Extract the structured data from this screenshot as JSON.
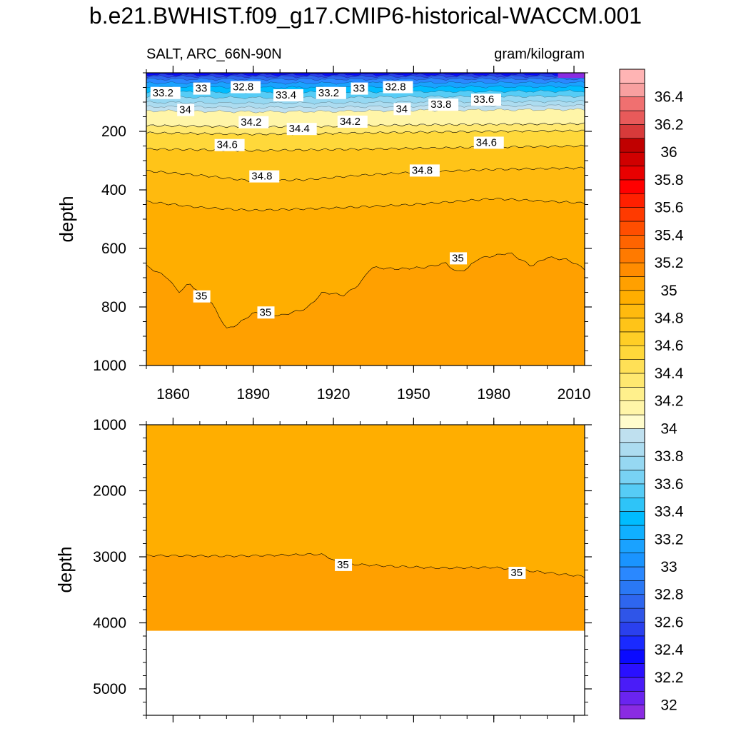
{
  "title": "b.e21.BWHIST.f09_g17.CMIP6-historical-WACCM.001",
  "colors": {
    "levels": [
      32,
      32.1,
      32.2,
      32.3,
      32.4,
      32.5,
      32.6,
      32.7,
      32.8,
      32.9,
      33,
      33.1,
      33.2,
      33.3,
      33.4,
      33.5,
      33.6,
      33.7,
      33.8,
      33.9,
      34,
      34.1,
      34.2,
      34.3,
      34.4,
      34.5,
      34.6,
      34.7,
      34.8,
      34.9,
      35,
      35.1,
      35.2,
      35.3,
      35.4,
      35.5,
      35.6,
      35.7,
      35.8,
      35.9,
      36,
      36.1,
      36.2,
      36.3,
      36.4,
      36.5
    ],
    "fills": [
      "#8a2be2",
      "#6a24f0",
      "#4a1cf8",
      "#2a10ff",
      "#0a0aff",
      "#1a2aff",
      "#2a40ee",
      "#2f55e8",
      "#2e66ef",
      "#2a78f5",
      "#2a88ff",
      "#1a94ff",
      "#1aa2ff",
      "#10b0ff",
      "#00bcff",
      "#2ec4f8",
      "#56ccf6",
      "#78d2f4",
      "#96d8f2",
      "#acdcf0",
      "#bfe0ef",
      "#fffccc",
      "#fff5a8",
      "#fff08c",
      "#ffe870",
      "#ffe056",
      "#ffd83a",
      "#ffce26",
      "#ffc418",
      "#ffba0e",
      "#ffae00",
      "#ffa000",
      "#ff8c00",
      "#ff7a00",
      "#ff6400",
      "#ff4e00",
      "#ff3a00",
      "#ff2000",
      "#ff0000",
      "#e80000",
      "#d00000",
      "#c00000",
      "#d83a3a",
      "#e85a5a",
      "#f07070",
      "#f8a0a0",
      "#ffb4b4"
    ]
  },
  "chart_data": [
    {
      "type": "heatmap",
      "panel": "upper",
      "left_label": "SALT, ARC_66N-90N",
      "right_label": "gram/kilogram",
      "xlabel": "",
      "ylabel": "depth",
      "xlim": [
        1850,
        2014
      ],
      "ylim": [
        1000,
        0
      ],
      "xticks": [
        1860,
        1890,
        1920,
        1950,
        1980,
        2010
      ],
      "yticks": [
        200,
        400,
        600,
        800,
        1000
      ],
      "contours": [
        {
          "level": 34.2,
          "depths": [
            [
              1850,
              180
            ],
            [
              1890,
              185
            ],
            [
              1920,
              183
            ],
            [
              1950,
              178
            ],
            [
              1980,
              176
            ],
            [
              2014,
              174
            ]
          ]
        },
        {
          "level": 34.4,
          "depths": [
            [
              1850,
              205
            ],
            [
              1890,
              210
            ],
            [
              1920,
              207
            ],
            [
              1950,
              203
            ],
            [
              1980,
              200
            ],
            [
              2014,
              198
            ]
          ]
        },
        {
          "level": 34.6,
          "depths": [
            [
              1850,
              260
            ],
            [
              1890,
              266
            ],
            [
              1920,
              262
            ],
            [
              1950,
              258
            ],
            [
              1980,
              254
            ],
            [
              2014,
              250
            ]
          ]
        },
        {
          "level": 34.8,
          "depths": [
            [
              1850,
              335
            ],
            [
              1870,
              350
            ],
            [
              1890,
              370
            ],
            [
              1910,
              365
            ],
            [
              1930,
              350
            ],
            [
              1950,
              340
            ],
            [
              1980,
              330
            ],
            [
              2014,
              325
            ]
          ]
        },
        {
          "level": 34.9,
          "depths": [
            [
              1850,
              440
            ],
            [
              1870,
              460
            ],
            [
              1890,
              470
            ],
            [
              1920,
              462
            ],
            [
              1950,
              450
            ],
            [
              1980,
              430
            ],
            [
              2014,
              445
            ]
          ]
        },
        {
          "level": 35.0,
          "depths": [
            [
              1850,
              660
            ],
            [
              1858,
              700
            ],
            [
              1862,
              750
            ],
            [
              1866,
              720
            ],
            [
              1874,
              780
            ],
            [
              1880,
              875
            ],
            [
              1884,
              860
            ],
            [
              1890,
              820
            ],
            [
              1900,
              830
            ],
            [
              1910,
              805
            ],
            [
              1916,
              750
            ],
            [
              1924,
              760
            ],
            [
              1930,
              720
            ],
            [
              1934,
              665
            ],
            [
              1944,
              670
            ],
            [
              1954,
              665
            ],
            [
              1962,
              650
            ],
            [
              1966,
              680
            ],
            [
              1970,
              670
            ],
            [
              1974,
              635
            ],
            [
              1986,
              615
            ],
            [
              1994,
              660
            ],
            [
              2000,
              630
            ],
            [
              2008,
              640
            ],
            [
              2014,
              670
            ]
          ]
        }
      ],
      "contour_labels": [
        {
          "text": "33.2",
          "x": 1851,
          "y": 75
        },
        {
          "text": "33",
          "x": 1867,
          "y": 60
        },
        {
          "text": "32.8",
          "x": 1881,
          "y": 55
        },
        {
          "text": "33.4",
          "x": 1897,
          "y": 83
        },
        {
          "text": "33.2",
          "x": 1913,
          "y": 75
        },
        {
          "text": "33",
          "x": 1926,
          "y": 60
        },
        {
          "text": "32.8",
          "x": 1938,
          "y": 55
        },
        {
          "text": "34",
          "x": 1861,
          "y": 133
        },
        {
          "text": "34",
          "x": 1942,
          "y": 130
        },
        {
          "text": "33.8",
          "x": 1955,
          "y": 115
        },
        {
          "text": "33.6",
          "x": 1971,
          "y": 98
        },
        {
          "text": "34.2",
          "x": 1884,
          "y": 175
        },
        {
          "text": "34.2",
          "x": 1921,
          "y": 173
        },
        {
          "text": "34.4",
          "x": 1902,
          "y": 198
        },
        {
          "text": "34.6",
          "x": 1875,
          "y": 253
        },
        {
          "text": "34.6",
          "x": 1972,
          "y": 245
        },
        {
          "text": "34.8",
          "x": 1888,
          "y": 360
        },
        {
          "text": "34.8",
          "x": 1948,
          "y": 340
        },
        {
          "text": "35",
          "x": 1867,
          "y": 770
        },
        {
          "text": "35",
          "x": 1891,
          "y": 825
        },
        {
          "text": "35",
          "x": 1963,
          "y": 640
        }
      ]
    },
    {
      "type": "heatmap",
      "panel": "lower",
      "xlabel": "",
      "ylabel": "depth",
      "xlim": [
        1850,
        2014
      ],
      "ylim": [
        5400,
        1000
      ],
      "xticks": [
        1860,
        1890,
        1920,
        1950,
        1980,
        2010
      ],
      "yticks": [
        1000,
        2000,
        3000,
        4000,
        5000
      ],
      "max_data_depth": 4120,
      "contours": [
        {
          "level": 35.0,
          "depths": [
            [
              1850,
              2980
            ],
            [
              1880,
              2990
            ],
            [
              1900,
              2975
            ],
            [
              1915,
              2960
            ],
            [
              1918,
              3000
            ],
            [
              1922,
              3100
            ],
            [
              1940,
              3140
            ],
            [
              1960,
              3170
            ],
            [
              1980,
              3160
            ],
            [
              2000,
              3240
            ],
            [
              2014,
              3300
            ]
          ]
        }
      ],
      "contour_labels": [
        {
          "text": "35",
          "x": 1920,
          "y": 3150
        },
        {
          "text": "35",
          "x": 1985,
          "y": 3270
        }
      ]
    }
  ],
  "colorbar": {
    "labels": [
      "36.4",
      "36.2",
      "36",
      "35.8",
      "35.6",
      "35.4",
      "35.2",
      "35",
      "34.8",
      "34.6",
      "34.4",
      "34.2",
      "34",
      "33.8",
      "33.6",
      "33.4",
      "33.2",
      "33",
      "32.8",
      "32.6",
      "32.4",
      "32.2",
      "32"
    ]
  }
}
